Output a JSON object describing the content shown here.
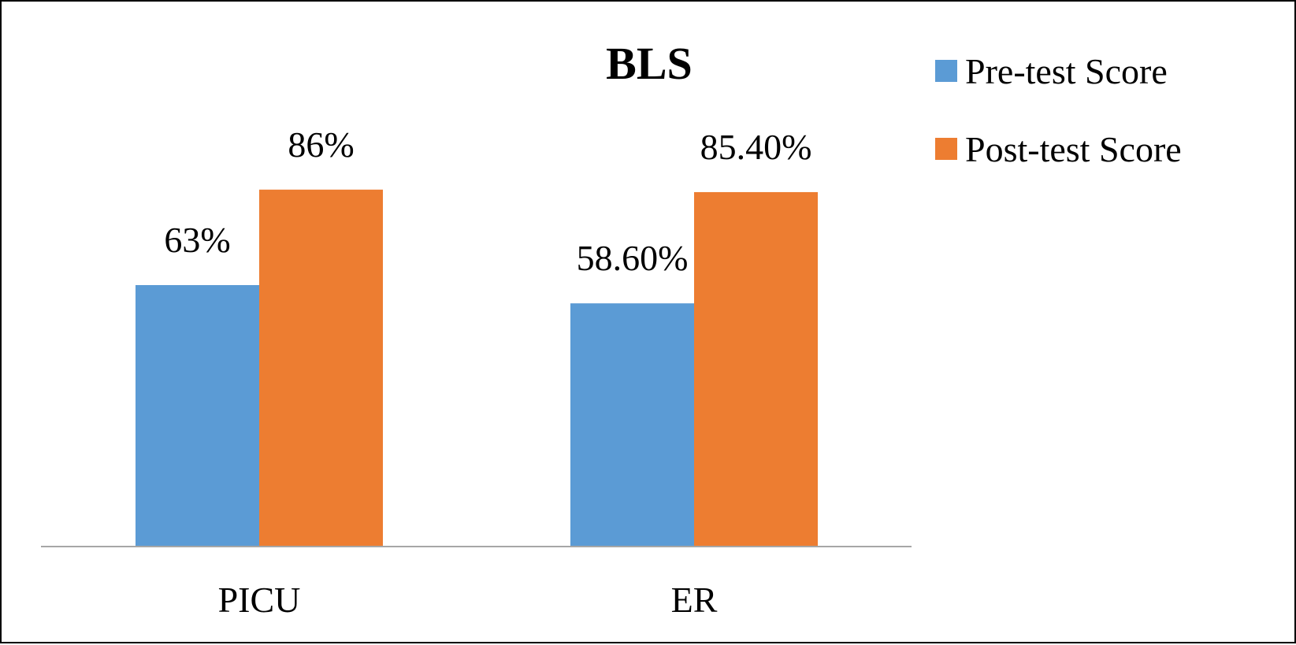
{
  "chart_data": {
    "type": "bar",
    "title": "BLS",
    "categories": [
      "PICU",
      "ER"
    ],
    "series": [
      {
        "name": "Pre-test Score",
        "values": [
          63,
          58.6
        ],
        "labels": [
          "63%",
          "58.60%"
        ],
        "color": "#5B9BD5"
      },
      {
        "name": "Post-test Score",
        "values": [
          86,
          85.4
        ],
        "labels": [
          "86%",
          "85.40%"
        ],
        "color": "#ED7D31"
      }
    ],
    "xlabel": "",
    "ylabel": "",
    "ylim": [
      0,
      100
    ],
    "grid": false,
    "legend_position": "top-right"
  }
}
